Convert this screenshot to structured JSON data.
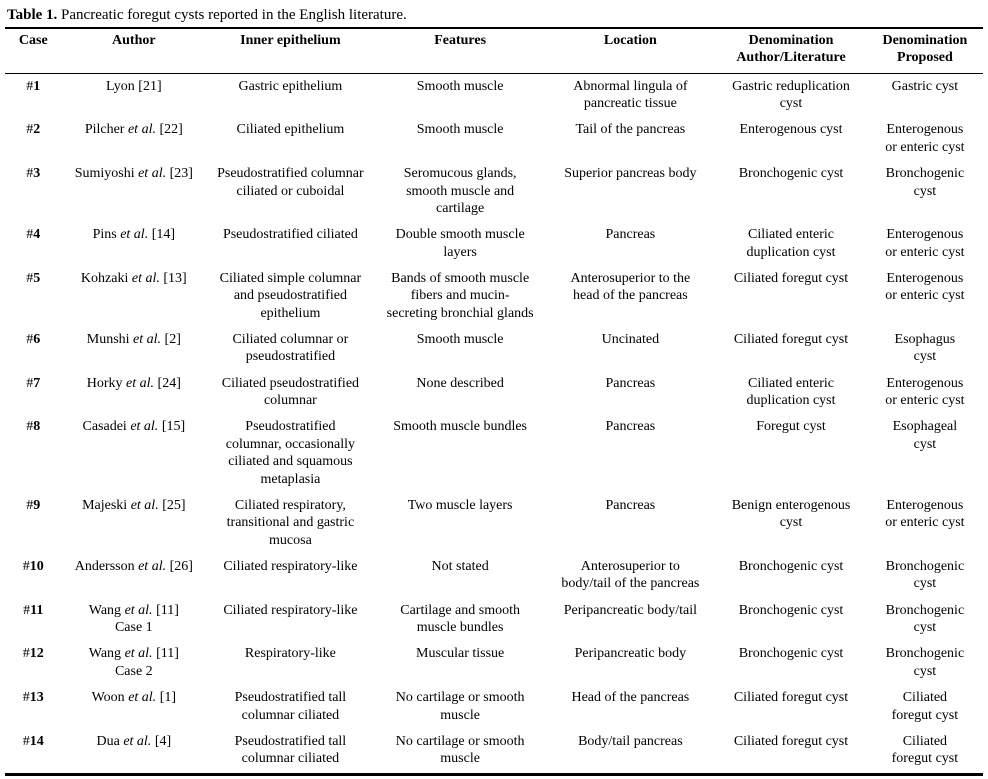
{
  "title": {
    "label": "Table 1.",
    "text": " Pancreatic foregut cysts reported in the English literature."
  },
  "colors": {
    "text": "#000000",
    "background": "#ffffff",
    "rule": "#000000"
  },
  "table": {
    "column_keys": [
      "case",
      "author",
      "inner-epithelium",
      "features",
      "location",
      "denomination-author-literature",
      "denomination-proposed"
    ],
    "columns": [
      {
        "label": "Case"
      },
      {
        "label": "Author"
      },
      {
        "label": "Inner epithelium"
      },
      {
        "label": "Features"
      },
      {
        "label": "Location"
      },
      {
        "label": "Denomination\nAuthor/Literature"
      },
      {
        "label": "Denomination\nProposed"
      }
    ],
    "rows": [
      [
        "#1",
        "Lyon [21]",
        "Gastric epithelium",
        "Smooth muscle",
        "Abnormal lingula of\npancreatic tissue",
        "Gastric reduplication\ncyst",
        "Gastric cyst"
      ],
      [
        "#2",
        "Pilcher et al. [22]",
        "Ciliated epithelium",
        "Smooth muscle",
        "Tail of the pancreas",
        "Enterogenous cyst",
        "Enterogenous\nor enteric cyst"
      ],
      [
        "#3",
        "Sumiyoshi et al. [23]",
        "Pseudostratified columnar\nciliated or cuboidal",
        "Seromucous glands,\nsmooth muscle and\ncartilage",
        "Superior pancreas body",
        "Bronchogenic cyst",
        "Bronchogenic\ncyst"
      ],
      [
        "#4",
        "Pins et al. [14]",
        "Pseudostratified ciliated",
        "Double smooth muscle\nlayers",
        "Pancreas",
        "Ciliated enteric\nduplication cyst",
        "Enterogenous\nor enteric cyst"
      ],
      [
        "#5",
        "Kohzaki et al. [13]",
        "Ciliated simple columnar\nand pseudostratified\nepithelium",
        "Bands of smooth muscle\nfibers and mucin-\nsecreting bronchial glands",
        "Anterosuperior to the\nhead of the pancreas",
        "Ciliated foregut cyst",
        "Enterogenous\nor enteric cyst"
      ],
      [
        "#6",
        "Munshi et al. [2]",
        "Ciliated columnar or\npseudostratified",
        "Smooth muscle",
        "Uncinated",
        "Ciliated foregut cyst",
        "Esophagus\ncyst"
      ],
      [
        "#7",
        "Horky et al. [24]",
        "Ciliated pseudostratified\ncolumnar",
        "None described",
        "Pancreas",
        "Ciliated enteric\nduplication cyst",
        "Enterogenous\nor enteric cyst"
      ],
      [
        "#8",
        "Casadei et al. [15]",
        "Pseudostratified\ncolumnar, occasionally\nciliated and squamous\nmetaplasia",
        "Smooth muscle bundles",
        "Pancreas",
        "Foregut cyst",
        "Esophageal\ncyst"
      ],
      [
        "#9",
        "Majeski et al. [25]",
        "Ciliated respiratory,\ntransitional and gastric\nmucosa",
        "Two muscle layers",
        "Pancreas",
        "Benign enterogenous\ncyst",
        "Enterogenous\nor enteric cyst"
      ],
      [
        "#10",
        "Andersson et al. [26]",
        "Ciliated respiratory-like",
        "Not stated",
        "Anterosuperior to\nbody/tail of the pancreas",
        "Bronchogenic cyst",
        "Bronchogenic\ncyst"
      ],
      [
        "#11",
        "Wang et al. [11]\nCase 1",
        "Ciliated respiratory-like",
        "Cartilage and smooth\nmuscle bundles",
        "Peripancreatic body/tail",
        "Bronchogenic cyst",
        "Bronchogenic\ncyst"
      ],
      [
        "#12",
        "Wang et al. [11]\nCase 2",
        "Respiratory-like",
        "Muscular tissue",
        "Peripancreatic body",
        "Bronchogenic cyst",
        "Bronchogenic\ncyst"
      ],
      [
        "#13",
        "Woon et al. [1]",
        "Pseudostratified tall\ncolumnar ciliated",
        "No cartilage or smooth\nmuscle",
        "Head of the pancreas",
        "Ciliated foregut cyst",
        "Ciliated\nforegut cyst"
      ],
      [
        "#14",
        "Dua et al. [4]",
        "Pseudostratified tall\ncolumnar ciliated",
        "No cartilage or smooth\nmuscle",
        "Body/tail pancreas",
        "Ciliated foregut cyst",
        "Ciliated\nforegut cyst"
      ]
    ]
  }
}
